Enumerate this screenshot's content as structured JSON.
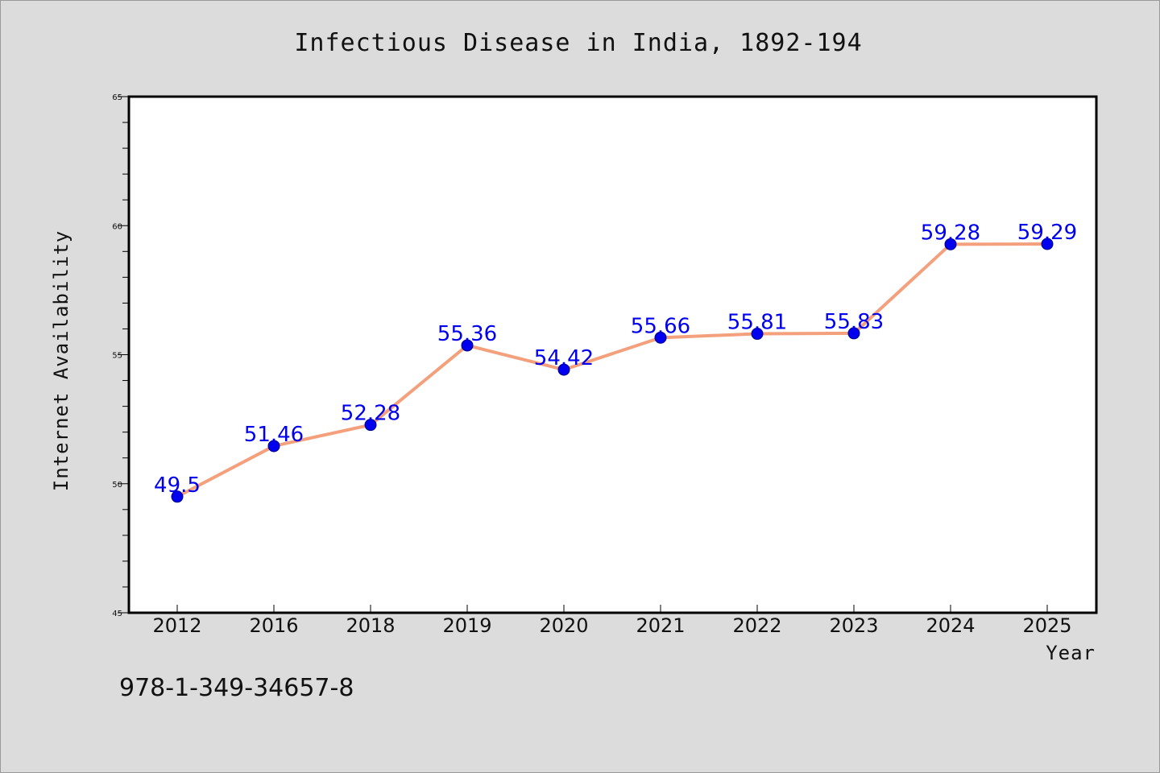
{
  "chart_data": {
    "type": "line",
    "title": "Infectious Disease in India, 1892-194",
    "xlabel": "Year",
    "ylabel": "Internet Availability",
    "categories": [
      "2012",
      "2016",
      "2018",
      "2019",
      "2020",
      "2021",
      "2022",
      "2023",
      "2024",
      "2025"
    ],
    "values": [
      49.5,
      51.46,
      52.28,
      55.36,
      54.42,
      55.66,
      55.81,
      55.83,
      59.28,
      59.29
    ],
    "data_labels": [
      "49.5",
      "51.46",
      "52.28",
      "55.36",
      "54.42",
      "55.66",
      "55.81",
      "55.83",
      "59.28",
      "59.29"
    ],
    "ylim": [
      45,
      65
    ],
    "yticks": [
      45,
      50,
      55,
      60,
      65
    ],
    "ytick_labels": [
      "45",
      "50",
      "55",
      "60",
      "65"
    ],
    "grid": false,
    "legend": "none",
    "line_color": "#f4a07c",
    "marker_color": "#0000ee",
    "label_color": "#0000ee"
  },
  "footer_code": "978-1-349-34657-8"
}
